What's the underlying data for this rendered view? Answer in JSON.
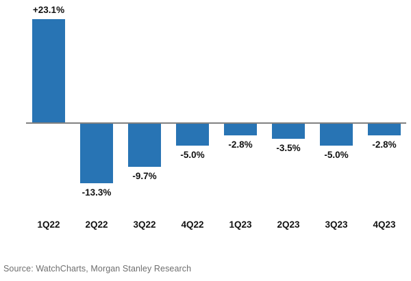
{
  "chart_data": {
    "type": "bar",
    "title": "",
    "categories": [
      "1Q22",
      "2Q22",
      "3Q22",
      "4Q22",
      "1Q23",
      "2Q23",
      "3Q23",
      "4Q23"
    ],
    "values": [
      23.1,
      -13.3,
      -9.7,
      -5.0,
      -2.8,
      -3.5,
      -5.0,
      -2.8
    ],
    "value_labels": [
      "+23.1%",
      "-13.3%",
      "-9.7%",
      "-5.0%",
      "-2.8%",
      "-3.5%",
      "-5.0%",
      "-2.8%"
    ],
    "ylabel": "",
    "xlabel": "",
    "ylim": [
      -16,
      25
    ],
    "grid": false,
    "legend": "none",
    "bar_color": "#2874b4",
    "axis_color": "#808080",
    "label_color": "#111111"
  },
  "source": {
    "text": "Source: WatchCharts, Morgan Stanley Research"
  }
}
